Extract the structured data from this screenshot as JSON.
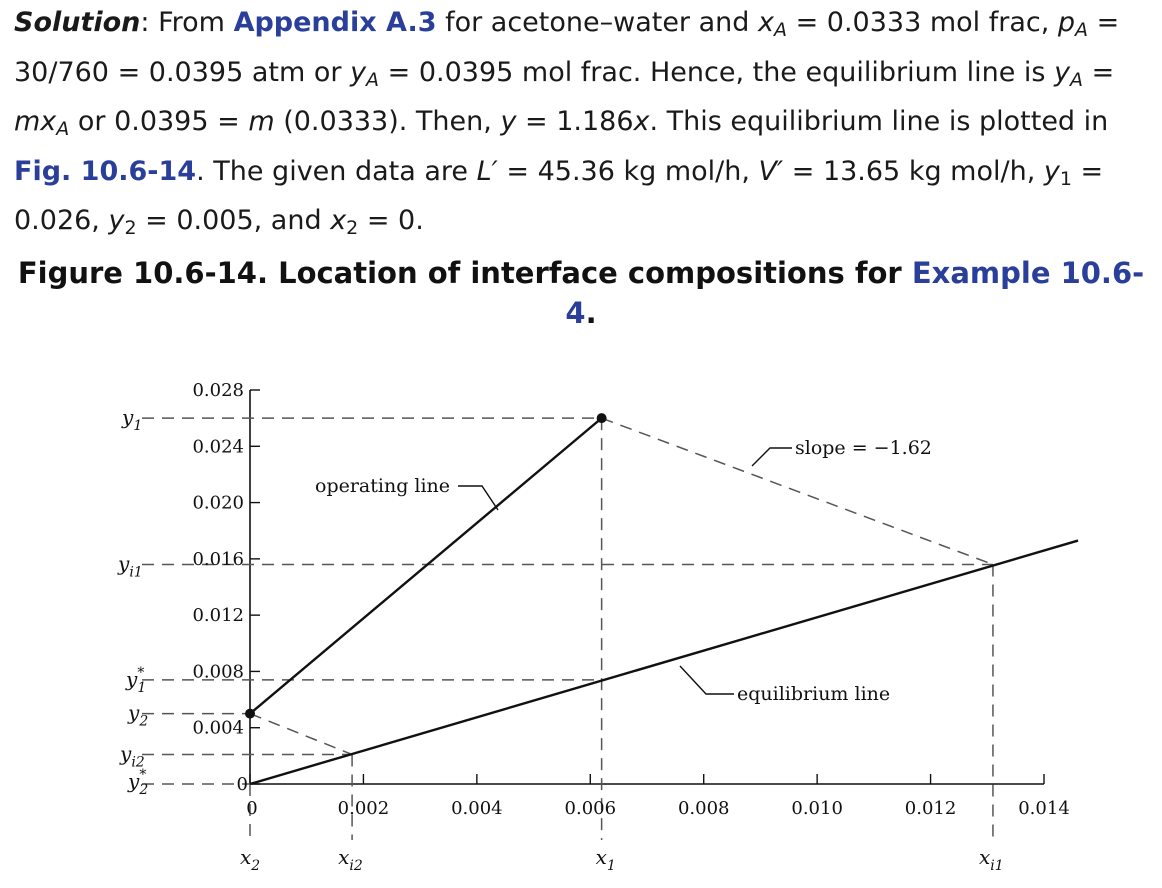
{
  "solution": {
    "lead": "Solution",
    "t1": ": From ",
    "ref_appendix": "Appendix A.3",
    "t2": " for acetone–water and ",
    "xA": "x",
    "xA_sub": "A",
    "t3": " = 0.0333 mol frac, ",
    "pA": "p",
    "pA_sub": "A",
    "t4": " = 30/760 = 0.0395 atm or ",
    "yA": "y",
    "yA_sub": "A",
    "t5": " = 0.0395 mol frac. Hence, the equilibrium line is ",
    "yA2": "y",
    "yA2_sub": "A",
    "t6": " = ",
    "mxA": "mx",
    "mxA_sub": "A",
    "t7": " or 0.0395 = ",
    "m": "m",
    "t8": " (0.0333). Then, ",
    "y": "y",
    "t9": " = 1.186",
    "x": "x",
    "t10": ". This equilibrium line is plotted in ",
    "ref_fig": "Fig. 10.6-14",
    "t11": ". The given data are ",
    "Lp": "L′",
    "t12": " = 45.36 kg mol/h, ",
    "Vp": "V′",
    "t13": " = 13.65 kg mol/h, ",
    "y1": "y",
    "y1_sub": "1",
    "t14": " = 0.026, ",
    "y2": "y",
    "y2_sub": "2",
    "t15": " = 0.005, and ",
    "x2": "x",
    "x2_sub": "2",
    "t16": " = 0."
  },
  "caption": {
    "text": "Figure 10.6-14. Location of interface compositions for ",
    "ref": "Example 10.6-4",
    "end": "."
  },
  "colors": {
    "text": "#1a1a1a",
    "ref": "#2a3f9a",
    "line": "#111111",
    "dash": "#555555"
  },
  "chart_data": {
    "type": "line",
    "title": "",
    "xlabel": "",
    "ylabel": "",
    "xlim": [
      0,
      0.014
    ],
    "ylim": [
      0,
      0.028
    ],
    "x_ticks": [
      0,
      0.002,
      0.004,
      0.006,
      0.008,
      0.01,
      0.012,
      0.014
    ],
    "x_tick_labels": [
      "0",
      "0.002",
      "0.004",
      "0.006",
      "0.008",
      "0.010",
      "0.012",
      "0.014"
    ],
    "y_ticks": [
      0,
      0.004,
      0.008,
      0.012,
      0.016,
      0.02,
      0.024,
      0.028
    ],
    "y_tick_labels": [
      "0",
      "0.004",
      "0.008",
      "0.012",
      "0.016",
      "0.020",
      "0.024",
      "0.028"
    ],
    "series": [
      {
        "name": "operating line",
        "style": "solid",
        "x": [
          0,
          0.0062
        ],
        "y": [
          0.005,
          0.026
        ]
      },
      {
        "name": "equilibrium line",
        "style": "solid",
        "x": [
          0,
          0.0146
        ],
        "y": [
          0,
          0.0173
        ]
      }
    ],
    "construction_lines": [
      {
        "style": "dashed",
        "x": [
          0.0062,
          0.0131
        ],
        "y": [
          0.026,
          0.0156
        ]
      },
      {
        "style": "dashed",
        "x": [
          0,
          0.0018
        ],
        "y": [
          0.005,
          0.0021
        ]
      }
    ],
    "points": [
      {
        "x": 0,
        "y": 0.005
      },
      {
        "x": 0.0062,
        "y": 0.026
      }
    ],
    "y_markers": [
      {
        "label": "y1",
        "y": 0.026
      },
      {
        "label": "yi1",
        "y": 0.0156
      },
      {
        "label": "y1*",
        "y": 0.0074
      },
      {
        "label": "y2",
        "y": 0.005
      },
      {
        "label": "yi2",
        "y": 0.0021
      },
      {
        "label": "y2*",
        "y": 0
      }
    ],
    "x_markers": [
      {
        "label": "x2",
        "x": 0
      },
      {
        "label": "xi2",
        "x": 0.0018
      },
      {
        "label": "x1",
        "x": 0.0062
      },
      {
        "label": "xi1",
        "x": 0.0131
      }
    ],
    "annotations": {
      "slope": "slope = −1.62",
      "operating": "operating line",
      "equilibrium": "equilibrium line"
    },
    "grid": false,
    "legend": "none"
  }
}
